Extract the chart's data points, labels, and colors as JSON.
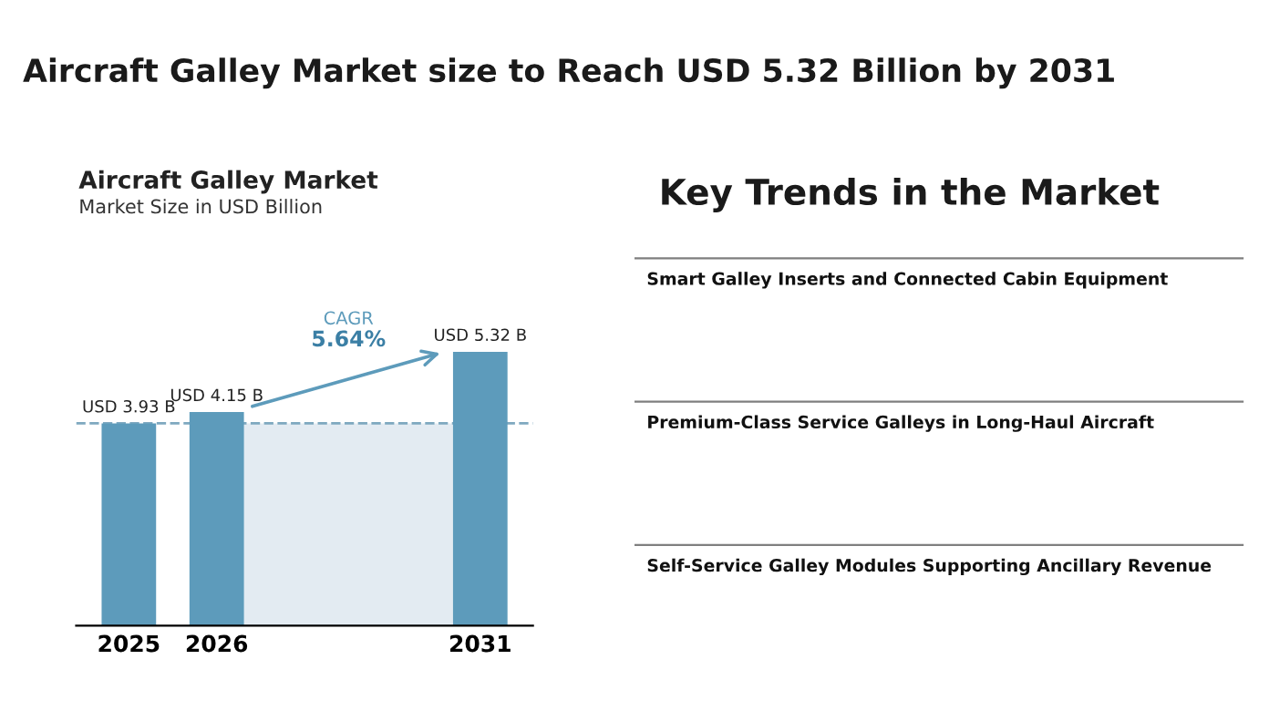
{
  "chart_data": [
    {
      "type": "bar",
      "title": "Aircraft Galley Market size to Reach USD 5.32 Billion by 2031",
      "subtitle": "Aircraft Galley Market",
      "annotations": [
        "Market Size in USD Billion",
        "CAGR",
        "5.64%"
      ],
      "categories": [
        "2025",
        "2026",
        null,
        null,
        "2031"
      ],
      "values": [
        3.93,
        4.15,
        null,
        null,
        5.32
      ],
      "color": "#5d9bbb",
      "value_labels": [
        "USD 3.93 B",
        "USD 4.15 B",
        null,
        null,
        "USD 5.32 B"
      ],
      "ref_lines": [
        {
          "axis": "y",
          "value": 3.93,
          "color": "#7fa9c0",
          "line_style": "dashed"
        }
      ],
      "bands": [
        {
          "axis": "x",
          "from": "2026",
          "to": "2031",
          "color": "#e3ebf2"
        }
      ],
      "grid": false,
      "legend": false
    },
    {
      "type": "other",
      "title": "Key Trends in the Market",
      "annotations": [
        "Smart Galley Inserts and Connected Cabin Equipment",
        "Premium-Class Service Galleys in Long-Haul Aircraft",
        "Self-Service Galley Modules Supporting Ancillary Revenue"
      ]
    }
  ]
}
